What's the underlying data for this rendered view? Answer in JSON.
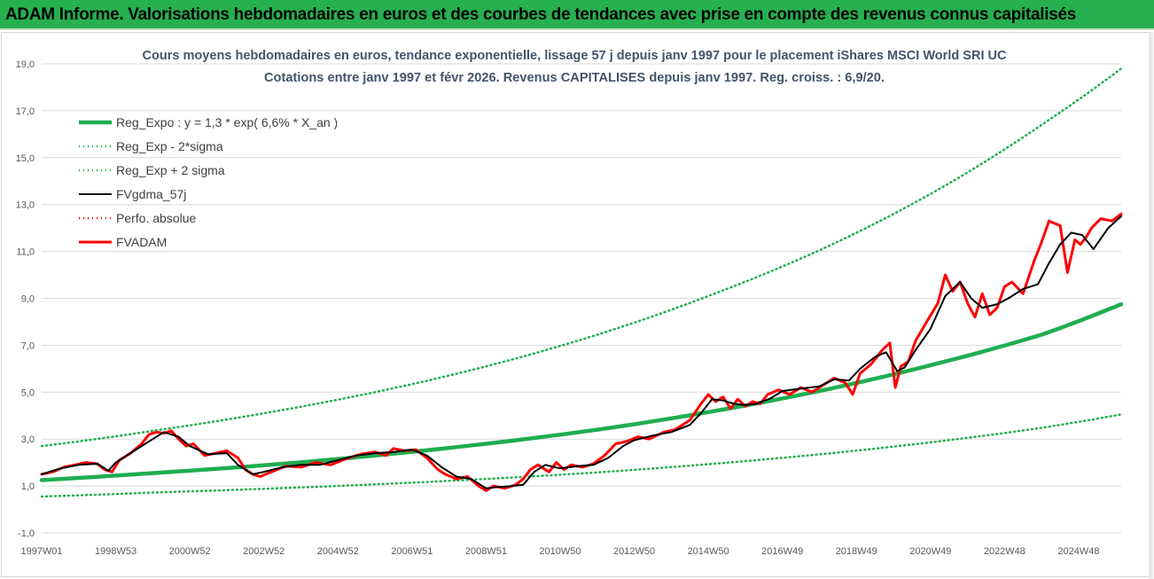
{
  "banner": {
    "title": "ADAM Informe. Valorisations hebdomadaires en euros et des courbes de tendances avec prise en compte des revenus connus capitalisés"
  },
  "chart_data": {
    "type": "line",
    "title_line1": "Cours moyens hebdomadaires en euros, tendance exponentielle, lissage 57 j depuis janv 1997 pour le placement iShares MSCI World SRI UC",
    "title_line2": "Cotations entre janv 1997 et févr 2026. Revenus CAPITALISES depuis janv 1997. Reg. croiss. : 6,9/20.",
    "ylim": [
      -1,
      19
    ],
    "y_ticks": [
      "-1,0",
      "1,0",
      "3,0",
      "5,0",
      "7,0",
      "9,0",
      "11,0",
      "13,0",
      "15,0",
      "17,0",
      "19,0"
    ],
    "x_tick_labels": [
      "1997W01",
      "1998W53",
      "2000W52",
      "2002W52",
      "2004W52",
      "2006W51",
      "2008W51",
      "2010W50",
      "2012W50",
      "2014W50",
      "2016W49",
      "2018W49",
      "2020W49",
      "2022W48",
      "2024W48"
    ],
    "x_tick_years": [
      1997.0,
      1999.0,
      2001.0,
      2003.0,
      2005.0,
      2007.0,
      2009.0,
      2011.0,
      2013.0,
      2015.0,
      2017.0,
      2019.0,
      2021.0,
      2023.0,
      2025.0
    ],
    "xlim": [
      1997.0,
      2026.15
    ],
    "legend": [
      {
        "name": "Reg_Expo : y = 1,3 * exp( 6,6% *  X_an )",
        "color": "#1fad50",
        "style": "solid-thick"
      },
      {
        "name": "Reg_Exp - 2*sigma",
        "color": "#1fad50",
        "style": "dotted"
      },
      {
        "name": "Reg_Exp + 2 sigma",
        "color": "#1fad50",
        "style": "dotted"
      },
      {
        "name": "FVgdma_57j",
        "color": "#000000",
        "style": "solid"
      },
      {
        "name": "Perfo. absolue",
        "color": "#e00000",
        "style": "dotted"
      },
      {
        "name": "FVADAM",
        "color": "#ff0000",
        "style": "solid-thick"
      }
    ],
    "series": [
      {
        "name": "Reg_Expo : y = 1,3 * exp( 6,6% *  X_an )",
        "x": [
          1997.0,
          2000.0,
          2003.0,
          2006.0,
          2009.0,
          2012.0,
          2015.0,
          2018.0,
          2021.0,
          2024.0,
          2026.15
        ],
        "y": [
          1.25,
          1.55,
          1.88,
          2.3,
          2.8,
          3.4,
          4.15,
          5.05,
          6.15,
          7.45,
          8.75
        ]
      },
      {
        "name": "Reg_Exp - 2*sigma",
        "x": [
          1997.0,
          2000.0,
          2003.0,
          2006.0,
          2009.0,
          2012.0,
          2015.0,
          2018.0,
          2021.0,
          2024.0,
          2026.15
        ],
        "y": [
          0.55,
          0.72,
          0.88,
          1.07,
          1.3,
          1.58,
          1.93,
          2.35,
          2.86,
          3.48,
          4.05
        ]
      },
      {
        "name": "Reg_Exp + 2 sigma",
        "x": [
          1997.0,
          2000.0,
          2003.0,
          2006.0,
          2009.0,
          2012.0,
          2015.0,
          2018.0,
          2021.0,
          2024.0,
          2026.15
        ],
        "y": [
          2.7,
          3.35,
          4.1,
          5.0,
          6.1,
          7.45,
          9.1,
          11.05,
          13.45,
          16.4,
          18.8
        ]
      },
      {
        "name": "FVgdma_57j",
        "x": [
          1997.0,
          1997.5,
          1998.0,
          1998.5,
          1998.8,
          1999.0,
          1999.5,
          2000.0,
          2000.3,
          2000.7,
          2001.0,
          2001.5,
          2002.0,
          2002.3,
          2002.7,
          2003.0,
          2003.5,
          2004.0,
          2004.5,
          2005.0,
          2005.5,
          2006.0,
          2006.5,
          2007.0,
          2007.4,
          2007.8,
          2008.2,
          2008.6,
          2009.0,
          2009.3,
          2009.7,
          2010.0,
          2010.3,
          2010.6,
          2011.0,
          2011.5,
          2011.9,
          2012.3,
          2012.7,
          2013.0,
          2013.5,
          2014.0,
          2014.5,
          2014.8,
          2015.1,
          2015.4,
          2015.7,
          2016.0,
          2016.3,
          2016.7,
          2017.0,
          2017.5,
          2018.0,
          2018.4,
          2018.8,
          2019.1,
          2019.5,
          2019.8,
          2020.1,
          2020.3,
          2020.6,
          2021.0,
          2021.4,
          2021.8,
          2022.1,
          2022.4,
          2022.8,
          2023.1,
          2023.5,
          2023.9,
          2024.2,
          2024.5,
          2024.8,
          2025.1,
          2025.4,
          2025.8,
          2026.15
        ],
        "y": [
          1.5,
          1.75,
          1.9,
          1.95,
          1.65,
          2.0,
          2.5,
          3.0,
          3.3,
          3.1,
          2.7,
          2.35,
          2.4,
          1.9,
          1.5,
          1.6,
          1.8,
          1.9,
          1.9,
          2.1,
          2.3,
          2.4,
          2.45,
          2.55,
          2.3,
          1.8,
          1.4,
          1.3,
          0.9,
          0.95,
          1.0,
          1.05,
          1.6,
          1.9,
          1.75,
          1.85,
          1.9,
          2.2,
          2.7,
          2.95,
          3.15,
          3.3,
          3.6,
          4.1,
          4.7,
          4.65,
          4.5,
          4.45,
          4.5,
          4.75,
          5.05,
          5.15,
          5.25,
          5.55,
          5.5,
          6.0,
          6.5,
          6.7,
          5.9,
          6.05,
          6.8,
          7.7,
          9.1,
          9.7,
          9.0,
          8.6,
          8.75,
          9.0,
          9.4,
          9.6,
          10.5,
          11.3,
          11.8,
          11.7,
          11.1,
          12.0,
          12.5
        ]
      },
      {
        "name": "FVADAM",
        "x": [
          1997.0,
          1997.3,
          1997.6,
          1997.9,
          1998.2,
          1998.5,
          1998.7,
          1998.9,
          1999.1,
          1999.4,
          1999.7,
          1999.9,
          2000.1,
          2000.3,
          2000.5,
          2000.7,
          2000.9,
          2001.1,
          2001.4,
          2001.7,
          2002.0,
          2002.3,
          2002.5,
          2002.7,
          2002.9,
          2003.2,
          2003.6,
          2004.0,
          2004.4,
          2004.8,
          2005.2,
          2005.6,
          2006.0,
          2006.3,
          2006.5,
          2006.8,
          2007.1,
          2007.4,
          2007.7,
          2007.9,
          2008.2,
          2008.5,
          2008.8,
          2009.0,
          2009.2,
          2009.5,
          2009.8,
          2010.0,
          2010.2,
          2010.4,
          2010.7,
          2010.9,
          2011.1,
          2011.3,
          2011.6,
          2011.9,
          2012.2,
          2012.5,
          2012.8,
          2013.1,
          2013.4,
          2013.8,
          2014.1,
          2014.5,
          2014.8,
          2015.0,
          2015.2,
          2015.4,
          2015.6,
          2015.8,
          2016.0,
          2016.2,
          2016.4,
          2016.6,
          2016.9,
          2017.2,
          2017.5,
          2017.8,
          2018.1,
          2018.4,
          2018.7,
          2018.9,
          2019.1,
          2019.4,
          2019.7,
          2019.9,
          2020.05,
          2020.2,
          2020.4,
          2020.6,
          2020.9,
          2021.2,
          2021.4,
          2021.6,
          2021.8,
          2022.0,
          2022.2,
          2022.4,
          2022.6,
          2022.8,
          2023.0,
          2023.2,
          2023.5,
          2023.8,
          2024.0,
          2024.2,
          2024.5,
          2024.7,
          2024.9,
          2025.05,
          2025.2,
          2025.35,
          2025.6,
          2025.9,
          2026.15
        ],
        "y": [
          1.5,
          1.6,
          1.8,
          1.9,
          2.0,
          1.95,
          1.7,
          1.6,
          2.1,
          2.4,
          2.8,
          3.2,
          3.3,
          3.25,
          3.35,
          3.0,
          2.7,
          2.8,
          2.3,
          2.4,
          2.5,
          2.2,
          1.7,
          1.5,
          1.4,
          1.6,
          1.85,
          1.8,
          2.0,
          1.9,
          2.15,
          2.35,
          2.45,
          2.3,
          2.6,
          2.5,
          2.55,
          2.2,
          1.7,
          1.5,
          1.3,
          1.4,
          1.0,
          0.8,
          1.0,
          0.9,
          1.05,
          1.3,
          1.7,
          1.9,
          1.6,
          2.0,
          1.7,
          1.9,
          1.8,
          1.95,
          2.3,
          2.8,
          2.9,
          3.1,
          3.0,
          3.3,
          3.4,
          3.8,
          4.5,
          4.9,
          4.6,
          4.8,
          4.3,
          4.7,
          4.4,
          4.6,
          4.5,
          4.9,
          5.1,
          4.9,
          5.2,
          5.0,
          5.3,
          5.6,
          5.4,
          4.9,
          5.8,
          6.2,
          6.8,
          7.1,
          5.2,
          6.1,
          6.3,
          7.2,
          8.0,
          8.8,
          10.0,
          9.3,
          9.7,
          8.8,
          8.2,
          9.2,
          8.3,
          8.6,
          9.5,
          9.7,
          9.2,
          10.6,
          11.4,
          12.3,
          12.1,
          10.1,
          11.5,
          11.3,
          11.6,
          12.0,
          12.4,
          12.3,
          12.6
        ]
      }
    ]
  }
}
